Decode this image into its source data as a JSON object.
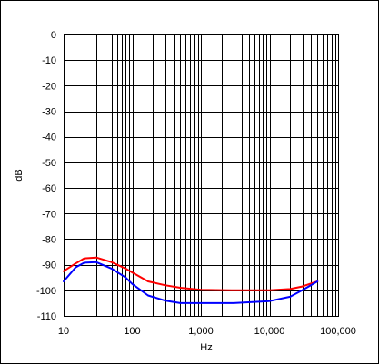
{
  "chart_data": {
    "type": "line",
    "title": "",
    "xlabel": "Hz",
    "ylabel": "dB",
    "x_scale": "log",
    "xlim": [
      10,
      100000
    ],
    "ylim": [
      -110,
      0
    ],
    "x_ticks": [
      {
        "value": 10,
        "label": "10"
      },
      {
        "value": 100,
        "label": "100"
      },
      {
        "value": 1000,
        "label": "1,000"
      },
      {
        "value": 10000,
        "label": "10,000"
      },
      {
        "value": 100000,
        "label": "100,000"
      }
    ],
    "y_ticks": [
      0,
      -10,
      -20,
      -30,
      -40,
      -50,
      -60,
      -70,
      -80,
      -90,
      -100,
      -110
    ],
    "grid": true,
    "legend": "none",
    "series": [
      {
        "color": "#ff0000",
        "points": [
          [
            10,
            -92.5
          ],
          [
            15,
            -89.5
          ],
          [
            20,
            -87.5
          ],
          [
            30,
            -87.2
          ],
          [
            50,
            -89
          ],
          [
            80,
            -91.5
          ],
          [
            100,
            -93
          ],
          [
            170,
            -96.5
          ],
          [
            300,
            -98
          ],
          [
            500,
            -99
          ],
          [
            1000,
            -99.8
          ],
          [
            3000,
            -100
          ],
          [
            10000,
            -100
          ],
          [
            20000,
            -99.5
          ],
          [
            30000,
            -98.5
          ],
          [
            50000,
            -96.5
          ]
        ]
      },
      {
        "color": "#0000ff",
        "points": [
          [
            10,
            -96.5
          ],
          [
            15,
            -91
          ],
          [
            20,
            -89.2
          ],
          [
            30,
            -89
          ],
          [
            50,
            -91.5
          ],
          [
            80,
            -95
          ],
          [
            100,
            -97.5
          ],
          [
            170,
            -102
          ],
          [
            300,
            -104
          ],
          [
            500,
            -105
          ],
          [
            1000,
            -105
          ],
          [
            3000,
            -105
          ],
          [
            10000,
            -104.2
          ],
          [
            20000,
            -102.5
          ],
          [
            30000,
            -100
          ],
          [
            50000,
            -96.5
          ]
        ]
      }
    ]
  }
}
